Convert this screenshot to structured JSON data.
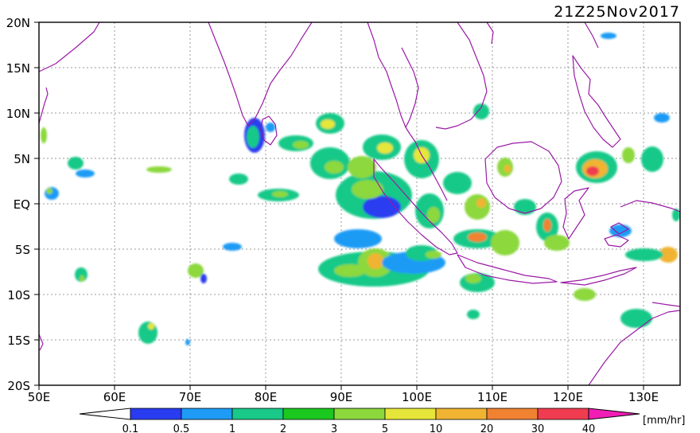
{
  "title": "21Z25Nov2017",
  "y_labels": [
    "20N",
    "15N",
    "10N",
    "5N",
    "EQ",
    "5S",
    "10S",
    "15S",
    "20S"
  ],
  "x_labels": [
    "50E",
    "60E",
    "70E",
    "80E",
    "90E",
    "100E",
    "110E",
    "120E",
    "130E"
  ],
  "colorbar": {
    "unit": "[mm/hr]",
    "ticks": [
      "0.1",
      "0.5",
      "1",
      "2",
      "3",
      "5",
      "10",
      "20",
      "30",
      "40"
    ],
    "colors": [
      "#2a3cf0",
      "#1e9bf5",
      "#18c988",
      "#1ac820",
      "#8cd83c",
      "#e6e63a",
      "#f0b432",
      "#f08232",
      "#f03c50",
      "#f01eb4"
    ]
  },
  "map_colors": {
    "coastline": "#9a1aa6",
    "grid": "#999999"
  }
}
